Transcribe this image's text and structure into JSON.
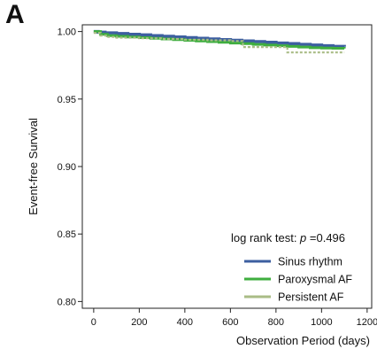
{
  "panel_label": "A",
  "chart_data": {
    "type": "line",
    "title": "",
    "xlabel": "Observation Period (days)",
    "ylabel": "Event-free Survival",
    "xlim": [
      -50,
      1220
    ],
    "ylim": [
      0.795,
      1.005
    ],
    "xticks": [
      0,
      200,
      400,
      600,
      800,
      1000,
      1200
    ],
    "yticks": [
      0.8,
      0.85,
      0.9,
      0.95,
      1.0
    ],
    "ytick_labels": [
      "0.80",
      "0.85",
      "0.90",
      "0.95",
      "1.00"
    ],
    "grid": false,
    "legend_position": "bottom-right",
    "annotation": {
      "prefix": "log rank test: ",
      "italic": "p",
      "suffix": " =0.496"
    },
    "series": [
      {
        "name": "Sinus rhythm",
        "color": "#3d5fa0",
        "width": 3.5,
        "dash": "",
        "x": [
          0,
          20,
          50,
          100,
          150,
          200,
          250,
          300,
          350,
          400,
          450,
          500,
          550,
          600,
          650,
          700,
          750,
          800,
          850,
          900,
          950,
          1000,
          1050,
          1100
        ],
        "y": [
          1.0,
          0.9995,
          0.999,
          0.9985,
          0.998,
          0.9975,
          0.997,
          0.9965,
          0.996,
          0.9955,
          0.995,
          0.9945,
          0.994,
          0.9935,
          0.993,
          0.9925,
          0.992,
          0.9915,
          0.991,
          0.9905,
          0.99,
          0.9895,
          0.989,
          0.9888
        ]
      },
      {
        "name": "Paroxysmal AF",
        "color": "#3fae3f",
        "width": 3,
        "dash": "",
        "x": [
          0,
          30,
          60,
          100,
          150,
          200,
          250,
          300,
          350,
          400,
          450,
          500,
          550,
          600,
          650,
          700,
          750,
          800,
          850,
          900,
          950,
          1000,
          1050,
          1100
        ],
        "y": [
          1.0,
          0.998,
          0.997,
          0.9965,
          0.996,
          0.9955,
          0.995,
          0.9945,
          0.994,
          0.9935,
          0.993,
          0.9925,
          0.992,
          0.9915,
          0.991,
          0.9905,
          0.99,
          0.9895,
          0.989,
          0.9885,
          0.988,
          0.9878,
          0.9876,
          0.9875
        ]
      },
      {
        "name": "Persistent AF",
        "color": "#a9bc86",
        "width": 2.2,
        "dash": "3,2",
        "x": [
          0,
          30,
          60,
          100,
          200,
          300,
          400,
          500,
          600,
          655,
          700,
          800,
          850,
          900,
          1000,
          1100
        ],
        "y": [
          0.999,
          0.997,
          0.996,
          0.9955,
          0.995,
          0.9945,
          0.994,
          0.9935,
          0.993,
          0.9885,
          0.9885,
          0.9885,
          0.9845,
          0.9845,
          0.9845,
          0.9845
        ]
      }
    ]
  }
}
